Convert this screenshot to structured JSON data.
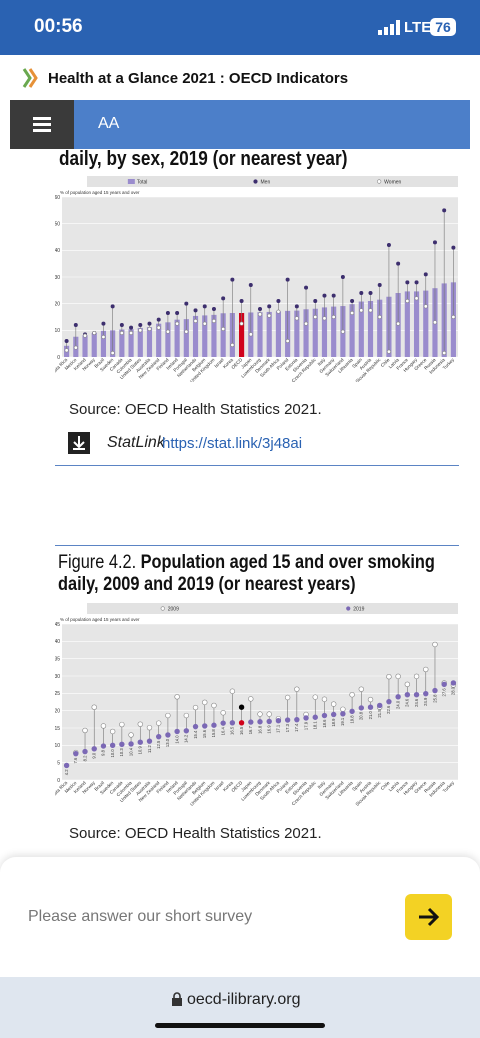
{
  "status_bar": {
    "time": "00:56",
    "network": "LTE",
    "battery": "76"
  },
  "header": {
    "title": "Health at a Glance 2021 : OECD Indicators"
  },
  "toolbar": {
    "font_button": "AA"
  },
  "section1": {
    "heading": "daily, by sex, 2019 (or nearest year)",
    "source": "Source: OECD Health Statistics 2021.",
    "statlink_label": "StatLink",
    "statlink_url": "https://stat.link/3j48ai"
  },
  "figure2": {
    "number": "Figure 4.2.",
    "title": "Population aged 15 and over smoking daily, 2009 and 2019 (or nearest years)",
    "source": "Source: OECD Health Statistics 2021."
  },
  "survey": {
    "text": "Please answer our short survey"
  },
  "url_bar": {
    "domain": "oecd-ilibrary.org"
  },
  "chart_data": [
    {
      "type": "bar",
      "y_label": "% of population aged 15 years and over",
      "categories": [
        "Costa Rica",
        "Mexico",
        "Iceland",
        "Norway",
        "Brazil",
        "Sweden",
        "Canada",
        "Colombia",
        "United States",
        "Australia",
        "New Zealand",
        "Finland",
        "Ireland",
        "Portugal",
        "Netherlands",
        "Belgium",
        "United Kingdom",
        "Israel",
        "Korea",
        "OECD",
        "Japan",
        "Luxembourg",
        "Denmark",
        "South Africa",
        "Poland",
        "Estonia",
        "Slovenia",
        "Czech Republic",
        "Italy",
        "Germany",
        "Switzerland",
        "Lithuania",
        "Spain",
        "Austria",
        "Slovak Republic",
        "Chile",
        "Latvia",
        "France",
        "Hungary",
        "Greece",
        "Russia",
        "Indonesia",
        "Turkey"
      ],
      "highlight_category": "OECD",
      "series": [
        {
          "name": "Total",
          "color": "#9a8ccd",
          "highlight_color": "#d0021b",
          "values": [
            4.2,
            7.6,
            8.2,
            9.0,
            9.8,
            10.0,
            10.3,
            10.4,
            10.9,
            11.2,
            12.5,
            13.0,
            14.0,
            14.2,
            15.4,
            15.6,
            15.8,
            16.4,
            16.5,
            16.5,
            16.7,
            16.8,
            16.9,
            17.1,
            17.3,
            17.4,
            17.9,
            18.1,
            18.6,
            18.9,
            19.1,
            19.8,
            20.8,
            21.0,
            21.5,
            22.6,
            24.0,
            24.6,
            24.6,
            24.9,
            25.8,
            27.6,
            28.0
          ]
        },
        {
          "name": "Men",
          "color": "#3d2f6e",
          "values": [
            6,
            12,
            8.5,
            9,
            12.5,
            19,
            12,
            11,
            12,
            12.5,
            14,
            16.5,
            16.5,
            20,
            17.5,
            19,
            18,
            22,
            29,
            21,
            27,
            18,
            19,
            21,
            29,
            19,
            26,
            21,
            23,
            23,
            30,
            21,
            24,
            24,
            27,
            42,
            35,
            28,
            28,
            31,
            43,
            55,
            41
          ]
        },
        {
          "name": "Women",
          "color": "#ffffff",
          "values": [
            2.5,
            3.5,
            8,
            9,
            7.5,
            1.5,
            9,
            9,
            10,
            10.5,
            11,
            9.5,
            12.5,
            9.5,
            13.5,
            12.5,
            13.5,
            10.5,
            4.5,
            12.5,
            8.5,
            16,
            15.5,
            17,
            6,
            14.5,
            12.5,
            15,
            14.5,
            15,
            9.5,
            16.5,
            17.5,
            17.5,
            15,
            2,
            12.5,
            21,
            22,
            19,
            13,
            1.5,
            15
          ]
        }
      ],
      "ylim": [
        0,
        60
      ],
      "yticks": [
        0,
        10,
        20,
        30,
        40,
        50,
        60
      ],
      "grid": true
    },
    {
      "type": "dot",
      "y_label": "% of population aged 15 years and over",
      "categories": [
        "Costa Rica",
        "Mexico",
        "Iceland",
        "Norway",
        "Brazil",
        "Sweden",
        "Canada",
        "Colombia",
        "United States",
        "Australia",
        "New Zealand",
        "Finland",
        "Ireland",
        "Portugal",
        "Netherlands",
        "Belgium",
        "United Kingdom",
        "Israel",
        "Korea",
        "OECD",
        "Japan",
        "Luxembourg",
        "Denmark",
        "South Africa",
        "Poland",
        "Estonia",
        "Slovenia",
        "Czech Republic",
        "Italy",
        "Germany",
        "Switzerland",
        "Lithuania",
        "Spain",
        "Austria",
        "Slovak Republic",
        "Chile",
        "Latvia",
        "France",
        "Hungary",
        "Greece",
        "Russia",
        "Indonesia",
        "Turkey"
      ],
      "highlight_category": "OECD",
      "series": [
        {
          "name": "2009",
          "color": "#ffffff",
          "highlight_color": "#000000",
          "values": [
            null,
            7.9,
            14.3,
            21.0,
            15.6,
            14.0,
            16.0,
            13.0,
            16.1,
            15.1,
            16.4,
            18.6,
            24.0,
            18.6,
            20.9,
            22.4,
            21.5,
            19.4,
            25.6,
            21.0,
            23.4,
            19.0,
            19.0,
            17.7,
            23.8,
            26.2,
            18.9,
            23.9,
            23.3,
            21.9,
            20.4,
            24.6,
            26.2,
            23.2,
            21.0,
            29.8,
            29.9,
            27.6,
            29.9,
            31.9,
            39.1,
            28.0,
            27.4
          ]
        },
        {
          "name": "2019",
          "color": "#7b68b5",
          "highlight_color": "#d0021b",
          "values": [
            4.2,
            7.6,
            8.2,
            9.0,
            9.8,
            10.0,
            10.3,
            10.4,
            10.9,
            11.2,
            12.5,
            13.0,
            14.0,
            14.2,
            15.4,
            15.6,
            15.8,
            16.4,
            16.5,
            16.5,
            16.7,
            16.8,
            16.9,
            17.1,
            17.3,
            17.4,
            17.9,
            18.1,
            18.6,
            18.9,
            19.1,
            19.8,
            20.8,
            21.0,
            21.5,
            22.6,
            24.0,
            24.6,
            24.6,
            24.9,
            25.8,
            27.6,
            28.0
          ],
          "value_labels": [
            "4.2",
            "7.6",
            "8.2",
            "9.0",
            "9.8",
            "10.0",
            "10.3",
            "10.4",
            "10.9",
            "11.2",
            "12.5",
            "13.0",
            "14.0",
            "14.2",
            "15.4",
            "15.6",
            "15.8",
            "16.4",
            "16.5",
            "16.5",
            "16.7",
            "16.8",
            "16.9",
            "17.1",
            "17.3",
            "17.4",
            "17.9",
            "18.1",
            "18.6",
            "18.9",
            "19.1",
            "19.8",
            "20.8",
            "21.0",
            "21.5",
            "22.6",
            "24.0",
            "24.6",
            "24.6",
            "24.9",
            "25.8",
            "27.6",
            "28.0"
          ]
        }
      ],
      "ylim": [
        0,
        45
      ],
      "yticks": [
        0,
        5,
        10,
        15,
        20,
        25,
        30,
        35,
        40,
        45
      ],
      "grid": true
    }
  ]
}
